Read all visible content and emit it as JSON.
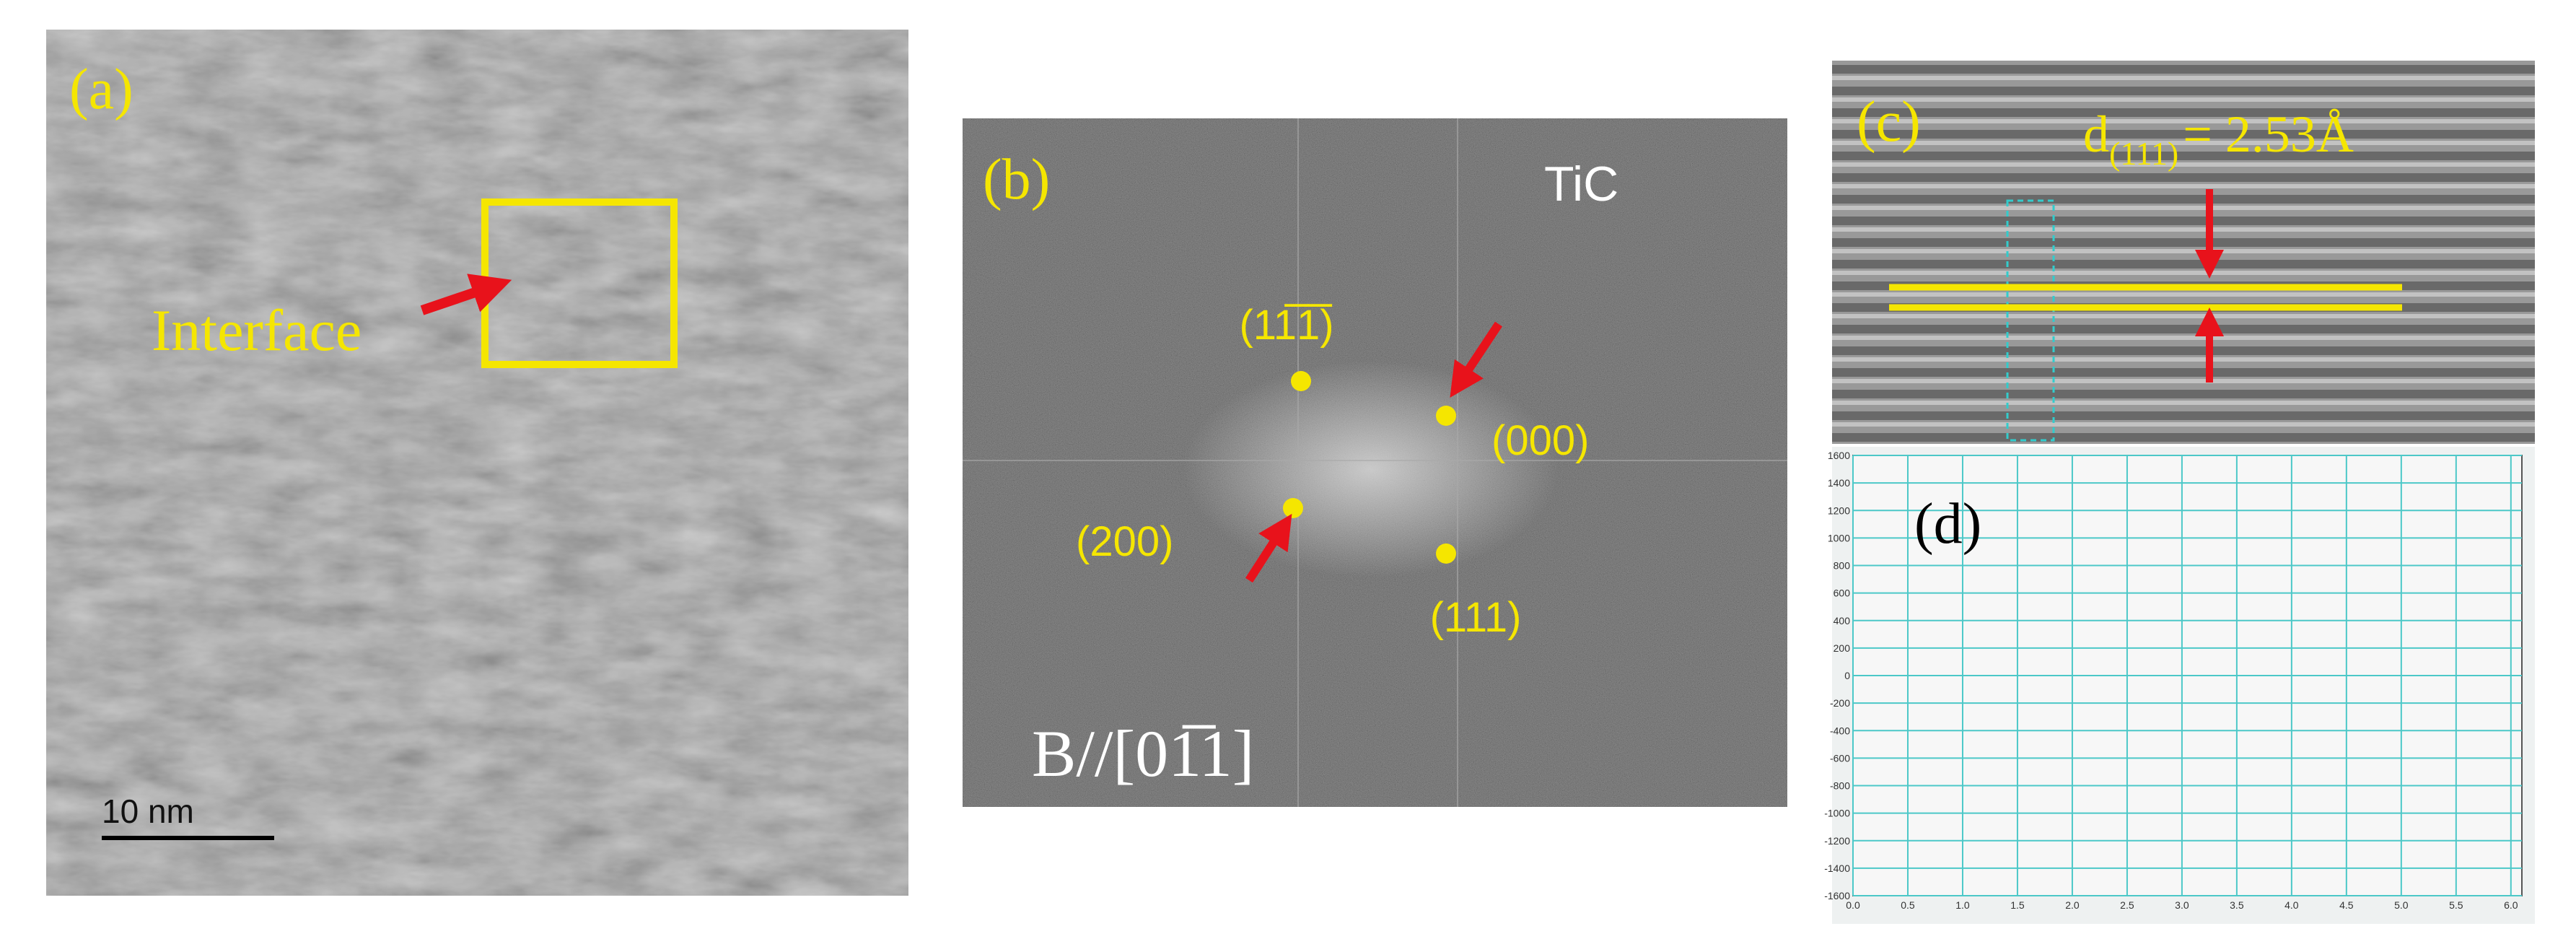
{
  "panel_a": {
    "label": "(a)",
    "annotation": "Interface",
    "scale_bar": "10 nm"
  },
  "panel_b": {
    "label": "(b)",
    "phase": "TiC",
    "spots": [
      "(11̅1̅)",
      "(000)",
      "(200)",
      "(111)"
    ],
    "zone_axis": "B//[01̅1]"
  },
  "panel_c": {
    "label": "(c)",
    "spacing": {
      "symbol": "d",
      "subscript": "(111)",
      "value_text": "= 2.53Å"
    }
  },
  "panel_d": {
    "label": "(d)",
    "yticks": [
      1600,
      1400,
      1200,
      1000,
      800,
      600,
      400,
      200,
      0,
      -200,
      -400,
      -600,
      -800,
      -1000,
      -1200,
      -1400,
      -1600
    ],
    "ylim": [
      -1600,
      1600
    ],
    "xticks": [
      {
        "value": 0,
        "label": "0.0"
      },
      {
        "value": 0.5,
        "label": "0.5"
      },
      {
        "value": 1,
        "label": "1.0"
      },
      {
        "value": 1.5,
        "label": "1.5"
      },
      {
        "value": 2,
        "label": "2.0"
      },
      {
        "value": 2.5,
        "label": "2.5"
      },
      {
        "value": 3,
        "label": "3.0"
      },
      {
        "value": 3.5,
        "label": "3.5"
      },
      {
        "value": 4,
        "label": "4.0"
      },
      {
        "value": 4.5,
        "label": "4.5"
      },
      {
        "value": 5,
        "label": "5.0"
      },
      {
        "value": 5.5,
        "label": "5.5"
      },
      {
        "value": 6,
        "label": "6.0"
      }
    ],
    "xlim": [
      0,
      6.1
    ]
  }
}
